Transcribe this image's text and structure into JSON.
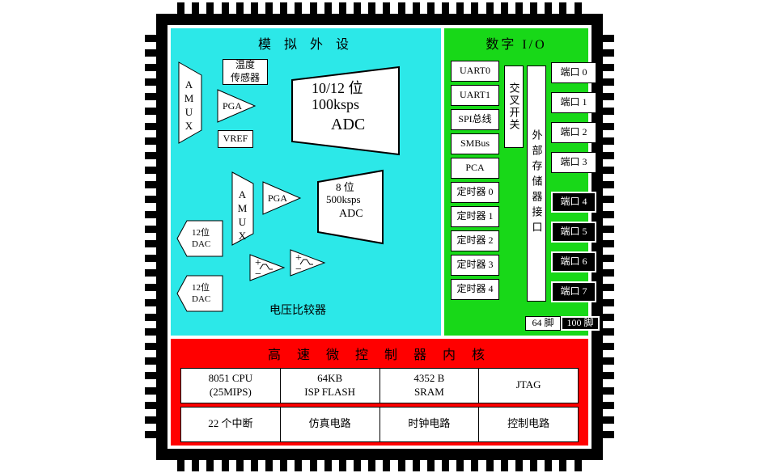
{
  "colors": {
    "analog_bg": "#2ce8e8",
    "digital_bg": "#18d818",
    "core_bg": "#ff0000",
    "outline": "#000000",
    "box_bg": "#ffffff",
    "black_box_bg": "#000000"
  },
  "analog": {
    "title": "模 拟 外 设",
    "amux1": "AMUX",
    "amux2": "AMUX",
    "temp_sensor": "温度\n传感器",
    "pga1": "PGA",
    "pga2": "PGA",
    "vref": "VREF",
    "adc1_l1": "10/12 位",
    "adc1_l2": "100ksps",
    "adc1_l3": "ADC",
    "adc2_l1": "8 位",
    "adc2_l2": "500ksps",
    "adc2_l3": "ADC",
    "dac1": "12位\nDAC",
    "dac2": "12位\nDAC",
    "vcomp_label": "电压比较器"
  },
  "digital": {
    "title": "数字 I/O",
    "left_list": [
      "UART0",
      "UART1",
      "SPI总线",
      "SMBus",
      "PCA",
      "定时器 0",
      "定时器 1",
      "定时器 2",
      "定时器 3",
      "定时器 4"
    ],
    "cross_switch": "交叉开关",
    "ext_mem_if": "外部存储器接口",
    "ports_white": [
      "端口 0",
      "端口 1",
      "端口 2",
      "端口 3"
    ],
    "ports_black": [
      "端口 4",
      "端口 5",
      "端口 6",
      "端口 7"
    ],
    "pin64": "64 脚",
    "pin100": "100 脚"
  },
  "core": {
    "title": "高 速 微 控 制 器 内 核",
    "row1": [
      {
        "l1": "8051 CPU",
        "l2": "(25MIPS)"
      },
      {
        "l1": "64KB",
        "l2": "ISP FLASH"
      },
      {
        "l1": "4352 B",
        "l2": "SRAM"
      },
      {
        "l1": "JTAG"
      }
    ],
    "row2": [
      {
        "l1": "22 个中断"
      },
      {
        "l1": "仿真电路"
      },
      {
        "l1": "时钟电路"
      },
      {
        "l1": "控制电路"
      }
    ]
  },
  "pins_per_side": 28
}
